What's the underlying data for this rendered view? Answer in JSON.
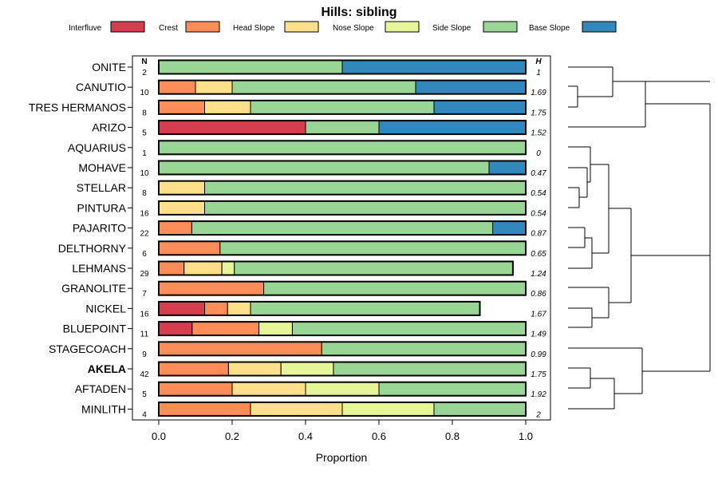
{
  "chart_data": {
    "type": "bar",
    "orientation": "horizontal-stacked",
    "title": "Hills: sibling",
    "xlabel": "Proportion",
    "ylabel": "",
    "xlim": [
      0,
      1
    ],
    "xticks": [
      "0.0",
      "0.2",
      "0.4",
      "0.6",
      "0.8",
      "1.0"
    ],
    "n_header": "N",
    "h_header": "H",
    "colors": {
      "Interfluve": "#D53E4F",
      "Crest": "#FC8D59",
      "Head Slope": "#FEE08B",
      "Nose Slope": "#E6F598",
      "Side Slope": "#99D594",
      "Base Slope": "#3288BD"
    },
    "series": [
      {
        "name": "Interfluve"
      },
      {
        "name": "Crest"
      },
      {
        "name": "Head Slope"
      },
      {
        "name": "Nose Slope"
      },
      {
        "name": "Side Slope"
      },
      {
        "name": "Base Slope"
      }
    ],
    "categories": [
      "ONITE",
      "CANUTIO",
      "TRES HERMANOS",
      "ARIZO",
      "AQUARIUS",
      "MOHAVE",
      "STELLAR",
      "PINTURA",
      "PAJARITO",
      "DELTHORNY",
      "LEHMANS",
      "GRANOLITE",
      "NICKEL",
      "BLUEPOINT",
      "STAGECOACH",
      "AKELA",
      "AFTADEN",
      "MINLITH"
    ],
    "bold_category": "AKELA",
    "rows": [
      {
        "name": "ONITE",
        "n": "2",
        "h": "1",
        "values": [
          0,
          0,
          0,
          0,
          0.5,
          0.5
        ]
      },
      {
        "name": "CANUTIO",
        "n": "10",
        "h": "1.69",
        "values": [
          0,
          0.1,
          0.1,
          0,
          0.5,
          0.3
        ]
      },
      {
        "name": "TRES HERMANOS",
        "n": "8",
        "h": "1.75",
        "values": [
          0,
          0.125,
          0.125,
          0,
          0.5,
          0.25
        ]
      },
      {
        "name": "ARIZO",
        "n": "5",
        "h": "1.52",
        "values": [
          0.4,
          0,
          0,
          0,
          0.2,
          0.4
        ]
      },
      {
        "name": "AQUARIUS",
        "n": "1",
        "h": "0",
        "values": [
          0,
          0,
          0,
          0,
          1,
          0
        ]
      },
      {
        "name": "MOHAVE",
        "n": "10",
        "h": "0.47",
        "values": [
          0,
          0,
          0,
          0,
          0.9,
          0.1
        ]
      },
      {
        "name": "STELLAR",
        "n": "8",
        "h": "0.54",
        "values": [
          0,
          0,
          0.125,
          0,
          0.875,
          0
        ]
      },
      {
        "name": "PINTURA",
        "n": "16",
        "h": "0.54",
        "values": [
          0,
          0,
          0.125,
          0,
          0.875,
          0
        ]
      },
      {
        "name": "PAJARITO",
        "n": "22",
        "h": "0.87",
        "values": [
          0,
          0.09,
          0,
          0,
          0.82,
          0.09
        ]
      },
      {
        "name": "DELTHORNY",
        "n": "6",
        "h": "0.65",
        "values": [
          0,
          0.167,
          0,
          0,
          0.833,
          0
        ]
      },
      {
        "name": "LEHMANS",
        "n": "29",
        "h": "1.24",
        "values": [
          0,
          0.069,
          0.103,
          0.034,
          0.759,
          0
        ]
      },
      {
        "name": "GRANOLITE",
        "n": "7",
        "h": "0.86",
        "values": [
          0,
          0.286,
          0,
          0,
          0.714,
          0
        ]
      },
      {
        "name": "NICKEL",
        "n": "16",
        "h": "1.67",
        "values": [
          0.125,
          0.0625,
          0.0625,
          0,
          0.625,
          0
        ]
      },
      {
        "name": "BLUEPOINT",
        "n": "11",
        "h": "1.49",
        "values": [
          0.091,
          0.182,
          0,
          0.091,
          0.636,
          0
        ]
      },
      {
        "name": "STAGECOACH",
        "n": "9",
        "h": "0.99",
        "values": [
          0,
          0.444,
          0,
          0,
          0.556,
          0
        ]
      },
      {
        "name": "AKELA",
        "n": "42",
        "h": "1.75",
        "values": [
          0,
          0.19,
          0.143,
          0.143,
          0.524,
          0
        ]
      },
      {
        "name": "AFTADEN",
        "n": "5",
        "h": "1.92",
        "values": [
          0,
          0.2,
          0.2,
          0.2,
          0.4,
          0
        ]
      },
      {
        "name": "MINLITH",
        "n": "4",
        "h": "2",
        "values": [
          0,
          0.25,
          0.25,
          0.25,
          0.25,
          0
        ]
      }
    ]
  }
}
